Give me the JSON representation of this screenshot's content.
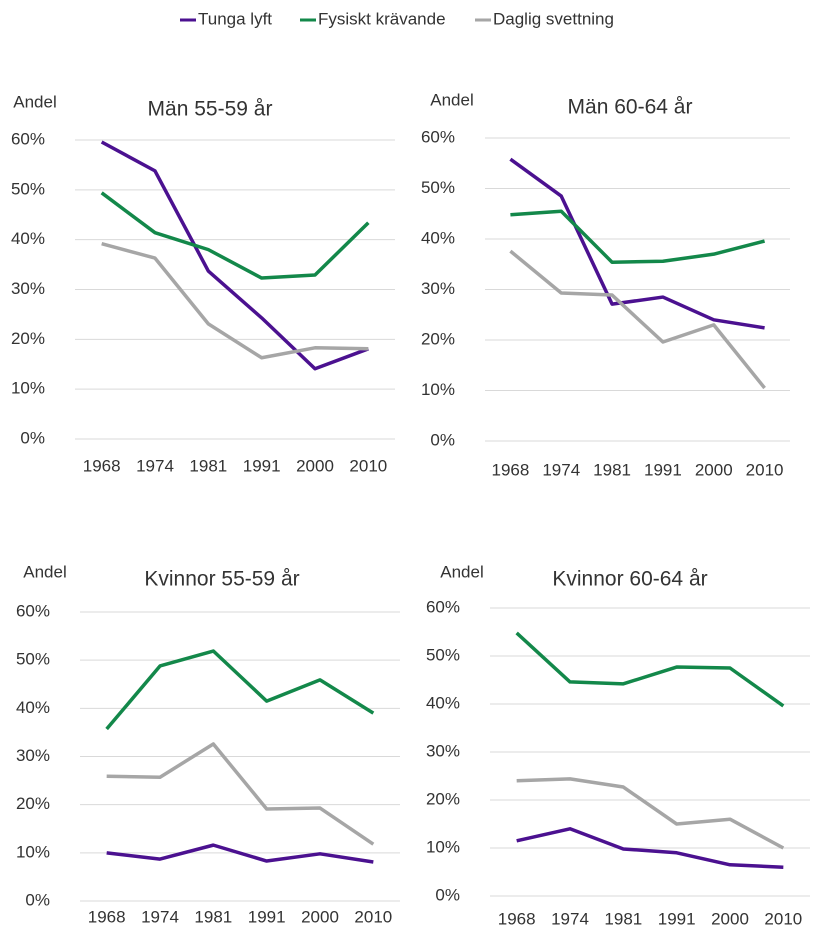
{
  "chart_data": [
    {
      "type": "line",
      "title": "Män 55-59 år",
      "y_label": "Andel",
      "categories": [
        "1968",
        "1974",
        "1981",
        "1991",
        "2000",
        "2010"
      ],
      "ylim": [
        0,
        60
      ],
      "yticks": [
        {
          "value": 0,
          "label": "0%"
        },
        {
          "value": 10,
          "label": "10%"
        },
        {
          "value": 20,
          "label": "20%"
        },
        {
          "value": 30,
          "label": "30%"
        },
        {
          "value": 40,
          "label": "40%"
        },
        {
          "value": 50,
          "label": "50%"
        },
        {
          "value": 60,
          "label": "60%"
        }
      ],
      "grid": true,
      "series": [
        {
          "name": "Tunga lyft",
          "color": "#4b1190",
          "values": [
            59.6,
            53.8,
            33.7,
            24.3,
            14.1,
            18.1
          ]
        },
        {
          "name": "Fysiskt krävande",
          "color": "#13884a",
          "values": [
            49.4,
            41.4,
            38.0,
            32.3,
            32.9,
            43.4
          ]
        },
        {
          "name": "Daglig svettning",
          "color": "#a6a6a6",
          "values": [
            39.2,
            36.3,
            23.1,
            16.3,
            18.3,
            18.1
          ]
        }
      ]
    },
    {
      "type": "line",
      "title": "Män 60-64 år",
      "y_label": "Andel",
      "categories": [
        "1968",
        "1974",
        "1981",
        "1991",
        "2000",
        "2010"
      ],
      "ylim": [
        0,
        60
      ],
      "yticks": [
        {
          "value": 0,
          "label": "0%"
        },
        {
          "value": 10,
          "label": "10%"
        },
        {
          "value": 20,
          "label": "20%"
        },
        {
          "value": 30,
          "label": "30%"
        },
        {
          "value": 40,
          "label": "40%"
        },
        {
          "value": 50,
          "label": "50%"
        },
        {
          "value": 60,
          "label": "60%"
        }
      ],
      "grid": true,
      "series": [
        {
          "name": "Tunga lyft",
          "color": "#4b1190",
          "values": [
            55.8,
            48.5,
            27.1,
            28.5,
            24.0,
            22.4
          ]
        },
        {
          "name": "Fysiskt krävande",
          "color": "#13884a",
          "values": [
            44.8,
            45.5,
            35.4,
            35.6,
            37.0,
            39.6
          ]
        },
        {
          "name": "Daglig svettning",
          "color": "#a6a6a6",
          "values": [
            37.6,
            29.3,
            28.9,
            19.6,
            23.0,
            10.5
          ]
        }
      ]
    },
    {
      "type": "line",
      "title": "Kvinnor 55-59 år",
      "y_label": "Andel",
      "categories": [
        "1968",
        "1974",
        "1981",
        "1991",
        "2000",
        "2010"
      ],
      "ylim": [
        0,
        60
      ],
      "yticks": [
        {
          "value": 0,
          "label": "0%"
        },
        {
          "value": 10,
          "label": "10%"
        },
        {
          "value": 20,
          "label": "20%"
        },
        {
          "value": 30,
          "label": "30%"
        },
        {
          "value": 40,
          "label": "40%"
        },
        {
          "value": 50,
          "label": "50%"
        },
        {
          "value": 60,
          "label": "60%"
        }
      ],
      "grid": true,
      "series": [
        {
          "name": "Tunga lyft",
          "color": "#4b1190",
          "values": [
            10.0,
            8.7,
            11.6,
            8.3,
            9.8,
            8.1
          ]
        },
        {
          "name": "Fysiskt krävande",
          "color": "#13884a",
          "values": [
            35.7,
            48.8,
            51.9,
            41.5,
            45.9,
            39.0
          ]
        },
        {
          "name": "Daglig svettning",
          "color": "#a6a6a6",
          "values": [
            25.9,
            25.7,
            32.6,
            19.1,
            19.3,
            11.8
          ]
        }
      ]
    },
    {
      "type": "line",
      "title": "Kvinnor 60-64 år",
      "y_label": "Andel",
      "categories": [
        "1968",
        "1974",
        "1981",
        "1991",
        "2000",
        "2010"
      ],
      "ylim": [
        0,
        60
      ],
      "yticks": [
        {
          "value": 0,
          "label": "0%"
        },
        {
          "value": 10,
          "label": "10%"
        },
        {
          "value": 20,
          "label": "20%"
        },
        {
          "value": 30,
          "label": "30%"
        },
        {
          "value": 40,
          "label": "40%"
        },
        {
          "value": 50,
          "label": "50%"
        },
        {
          "value": 60,
          "label": "60%"
        }
      ],
      "grid": true,
      "series": [
        {
          "name": "Tunga lyft",
          "color": "#4b1190",
          "values": [
            11.5,
            14.0,
            9.8,
            9.0,
            6.5,
            6.0
          ]
        },
        {
          "name": "Fysiskt krävande",
          "color": "#13884a",
          "values": [
            54.8,
            44.6,
            44.2,
            47.7,
            47.5,
            39.6
          ]
        },
        {
          "name": "Daglig svettning",
          "color": "#a6a6a6",
          "values": [
            24.0,
            24.4,
            22.7,
            15.0,
            16.0,
            10.0
          ]
        }
      ]
    }
  ]
}
